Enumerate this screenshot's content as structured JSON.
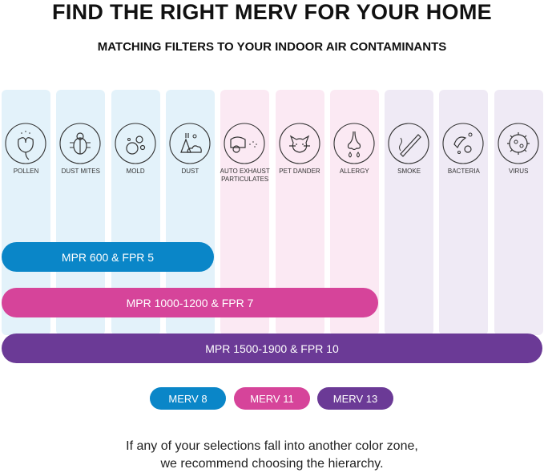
{
  "title": "FIND THE RIGHT MERV FOR YOUR HOME",
  "subtitle": "MATCHING FILTERS TO YOUR INDOOR AIR CONTAMINANTS",
  "colors": {
    "blue": "#0a86c8",
    "pink": "#d6449a",
    "purple": "#6b3a96",
    "blue_bg": "#e3f2fa",
    "pink_bg": "#fbe9f3",
    "purple_bg": "#efeaf5"
  },
  "contaminants": [
    {
      "label": "POLLEN",
      "icon": "flower-icon",
      "zone": "blue"
    },
    {
      "label": "DUST MITES",
      "icon": "bug-icon",
      "zone": "blue"
    },
    {
      "label": "MOLD",
      "icon": "mold-icon",
      "zone": "blue"
    },
    {
      "label": "DUST",
      "icon": "dust-icon",
      "zone": "blue"
    },
    {
      "label": "AUTO EXHAUST PARTICULATES",
      "icon": "car-exhaust-icon",
      "zone": "pink"
    },
    {
      "label": "PET DANDER",
      "icon": "cat-icon",
      "zone": "pink"
    },
    {
      "label": "ALLERGY",
      "icon": "nose-icon",
      "zone": "pink"
    },
    {
      "label": "SMOKE",
      "icon": "cigarette-icon",
      "zone": "purple"
    },
    {
      "label": "BACTERIA",
      "icon": "bacteria-icon",
      "zone": "purple"
    },
    {
      "label": "VIRUS",
      "icon": "virus-icon",
      "zone": "purple"
    }
  ],
  "bars": [
    {
      "label": "MPR 600 & FPR 5"
    },
    {
      "label": "MPR 1000-1200 & FPR 7"
    },
    {
      "label": "MPR 1500-1900 & FPR 10"
    }
  ],
  "legend": [
    {
      "label": "MERV 8"
    },
    {
      "label": "MERV 11"
    },
    {
      "label": "MERV 13"
    }
  ],
  "note_line1": "If any of your selections fall into another color zone,",
  "note_line2": "we recommend choosing the hierarchy."
}
